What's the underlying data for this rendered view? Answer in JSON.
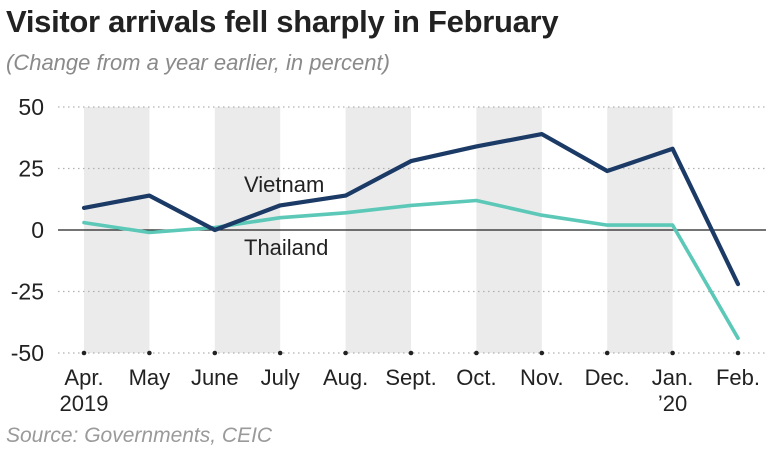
{
  "title": "Visitor arrivals fell sharply in February",
  "subtitle": "(Change from a year earlier, in percent)",
  "source": "Source: Governments, CEIC",
  "colors": {
    "vietnam": "#1b3a66",
    "thailand": "#5cc8b8",
    "band": "#ebebeb",
    "grid": "#b0b0b0",
    "zero": "#222222"
  },
  "chart_data": {
    "type": "line",
    "title": "Visitor arrivals fell sharply in February",
    "subtitle": "(Change from a year earlier, in percent)",
    "categories": [
      "Apr.",
      "May",
      "June",
      "July",
      "Aug.",
      "Sept.",
      "Oct.",
      "Nov.",
      "Dec.",
      "Jan.",
      "Feb."
    ],
    "category_sublabels": [
      "2019",
      "",
      "",
      "",
      "",
      "",
      "",
      "",
      "",
      "’20",
      ""
    ],
    "series": [
      {
        "name": "Vietnam",
        "values": [
          9,
          14,
          0,
          10,
          14,
          28,
          34,
          39,
          24,
          33,
          -22
        ]
      },
      {
        "name": "Thailand",
        "values": [
          3,
          -1,
          1,
          5,
          7,
          10,
          12,
          6,
          2,
          2,
          -44
        ]
      }
    ],
    "ylim": [
      -50,
      50
    ],
    "yticks": [
      50,
      25,
      0,
      -25,
      -50
    ],
    "shaded_bands": [
      [
        0,
        1
      ],
      [
        2,
        3
      ],
      [
        4,
        5
      ],
      [
        6,
        7
      ],
      [
        8,
        9
      ]
    ],
    "grid": true,
    "legend": "inline labels"
  }
}
